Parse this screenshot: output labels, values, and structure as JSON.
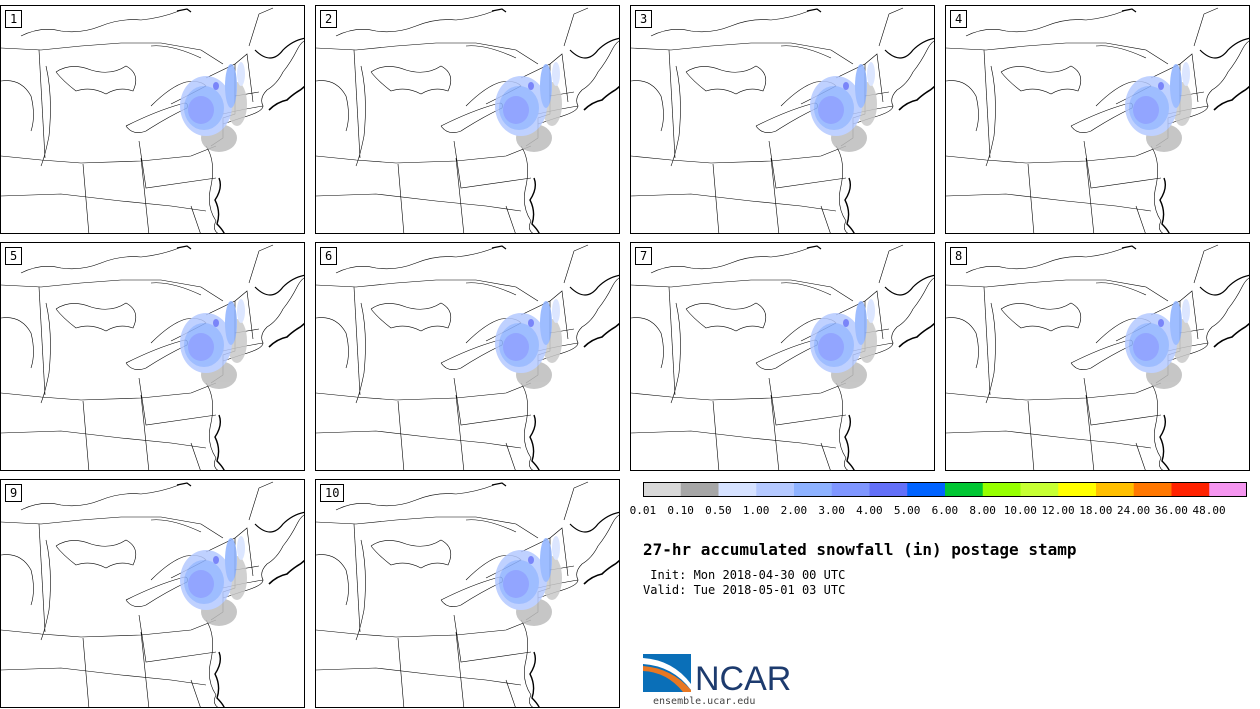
{
  "panels": [
    {
      "label": "1"
    },
    {
      "label": "2"
    },
    {
      "label": "3"
    },
    {
      "label": "4"
    },
    {
      "label": "5"
    },
    {
      "label": "6"
    },
    {
      "label": "7"
    },
    {
      "label": "8"
    },
    {
      "label": "9"
    },
    {
      "label": "10"
    }
  ],
  "colorbar": {
    "colors": [
      "#d9d9d9",
      "#a6a6a6",
      "#d6e2ff",
      "#b5c9ff",
      "#8eb2ff",
      "#7f96ff",
      "#6370f8",
      "#0063ff",
      "#00c633",
      "#96ff00",
      "#c6ff33",
      "#ffff00",
      "#ffbf00",
      "#ff7700",
      "#ff2200",
      "#f596f0"
    ],
    "ticks": [
      "0.01",
      "0.10",
      "0.50",
      "1.00",
      "2.00",
      "3.00",
      "4.00",
      "5.00",
      "6.00",
      "8.00",
      "10.00",
      "12.00",
      "18.00",
      "24.00",
      "36.00",
      "48.00"
    ]
  },
  "title": "27-hr accumulated snowfall (in) postage stamp",
  "init": " Init: Mon 2018-04-30 00 UTC",
  "valid": "Valid: Tue 2018-05-01 03 UTC",
  "logo_text": "NCAR",
  "url": "ensemble.ucar.edu"
}
